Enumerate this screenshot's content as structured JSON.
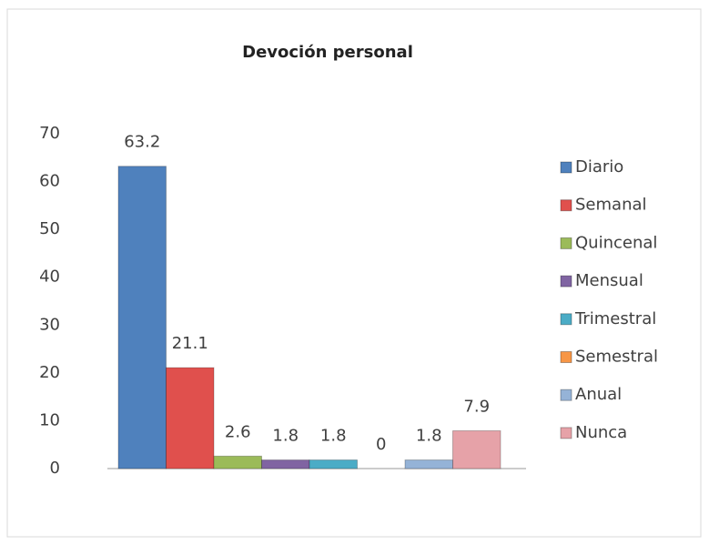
{
  "chart_data": {
    "type": "bar",
    "title": "Devoción personal",
    "categories": [
      null
    ],
    "series": [
      {
        "name": "Diario",
        "color": "#4f81bd",
        "values": [
          63.2
        ]
      },
      {
        "name": "Semanal",
        "color": "#e0504d",
        "values": [
          21.1
        ]
      },
      {
        "name": "Quincenal",
        "color": "#9bbb59",
        "values": [
          2.6
        ]
      },
      {
        "name": "Mensual",
        "color": "#8064a2",
        "values": [
          1.8
        ]
      },
      {
        "name": "Trimestral",
        "color": "#4bacc6",
        "values": [
          1.8
        ]
      },
      {
        "name": "Semestral",
        "color": "#f79646",
        "values": [
          0
        ]
      },
      {
        "name": "Anual",
        "color": "#95b3d7",
        "values": [
          1.8
        ]
      },
      {
        "name": "Nunca",
        "color": "#e6a2a8",
        "values": [
          7.9
        ]
      }
    ],
    "ylim": [
      0,
      70
    ],
    "yticks": [
      0,
      10,
      20,
      30,
      40,
      50,
      60,
      70
    ],
    "grid": false,
    "legend": "right"
  }
}
